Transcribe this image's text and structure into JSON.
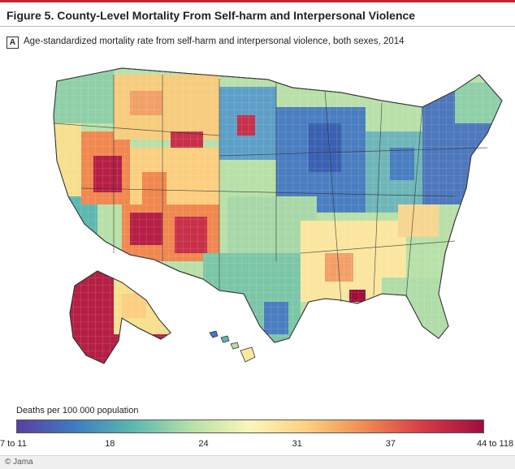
{
  "figure": {
    "title": "Figure 5. County-Level Mortality From Self-harm and Interpersonal Violence",
    "accent_color": "#c0272d"
  },
  "panel": {
    "label": "A",
    "caption": "Age-standardized mortality rate from self-harm and interpersonal violence, both sexes, 2014"
  },
  "legend": {
    "title": "Deaths per 100 000 population",
    "ticks": [
      "7 to 11",
      "18",
      "24",
      "31",
      "37",
      "44 to 118"
    ],
    "gradient_colors": [
      "#5a3fa0",
      "#3e7cc0",
      "#5cb8b0",
      "#b8e0a8",
      "#fbf6b8",
      "#fbcf80",
      "#f08850",
      "#d63848",
      "#9e0f3c"
    ]
  },
  "credit": {
    "text": "© Jama"
  }
}
